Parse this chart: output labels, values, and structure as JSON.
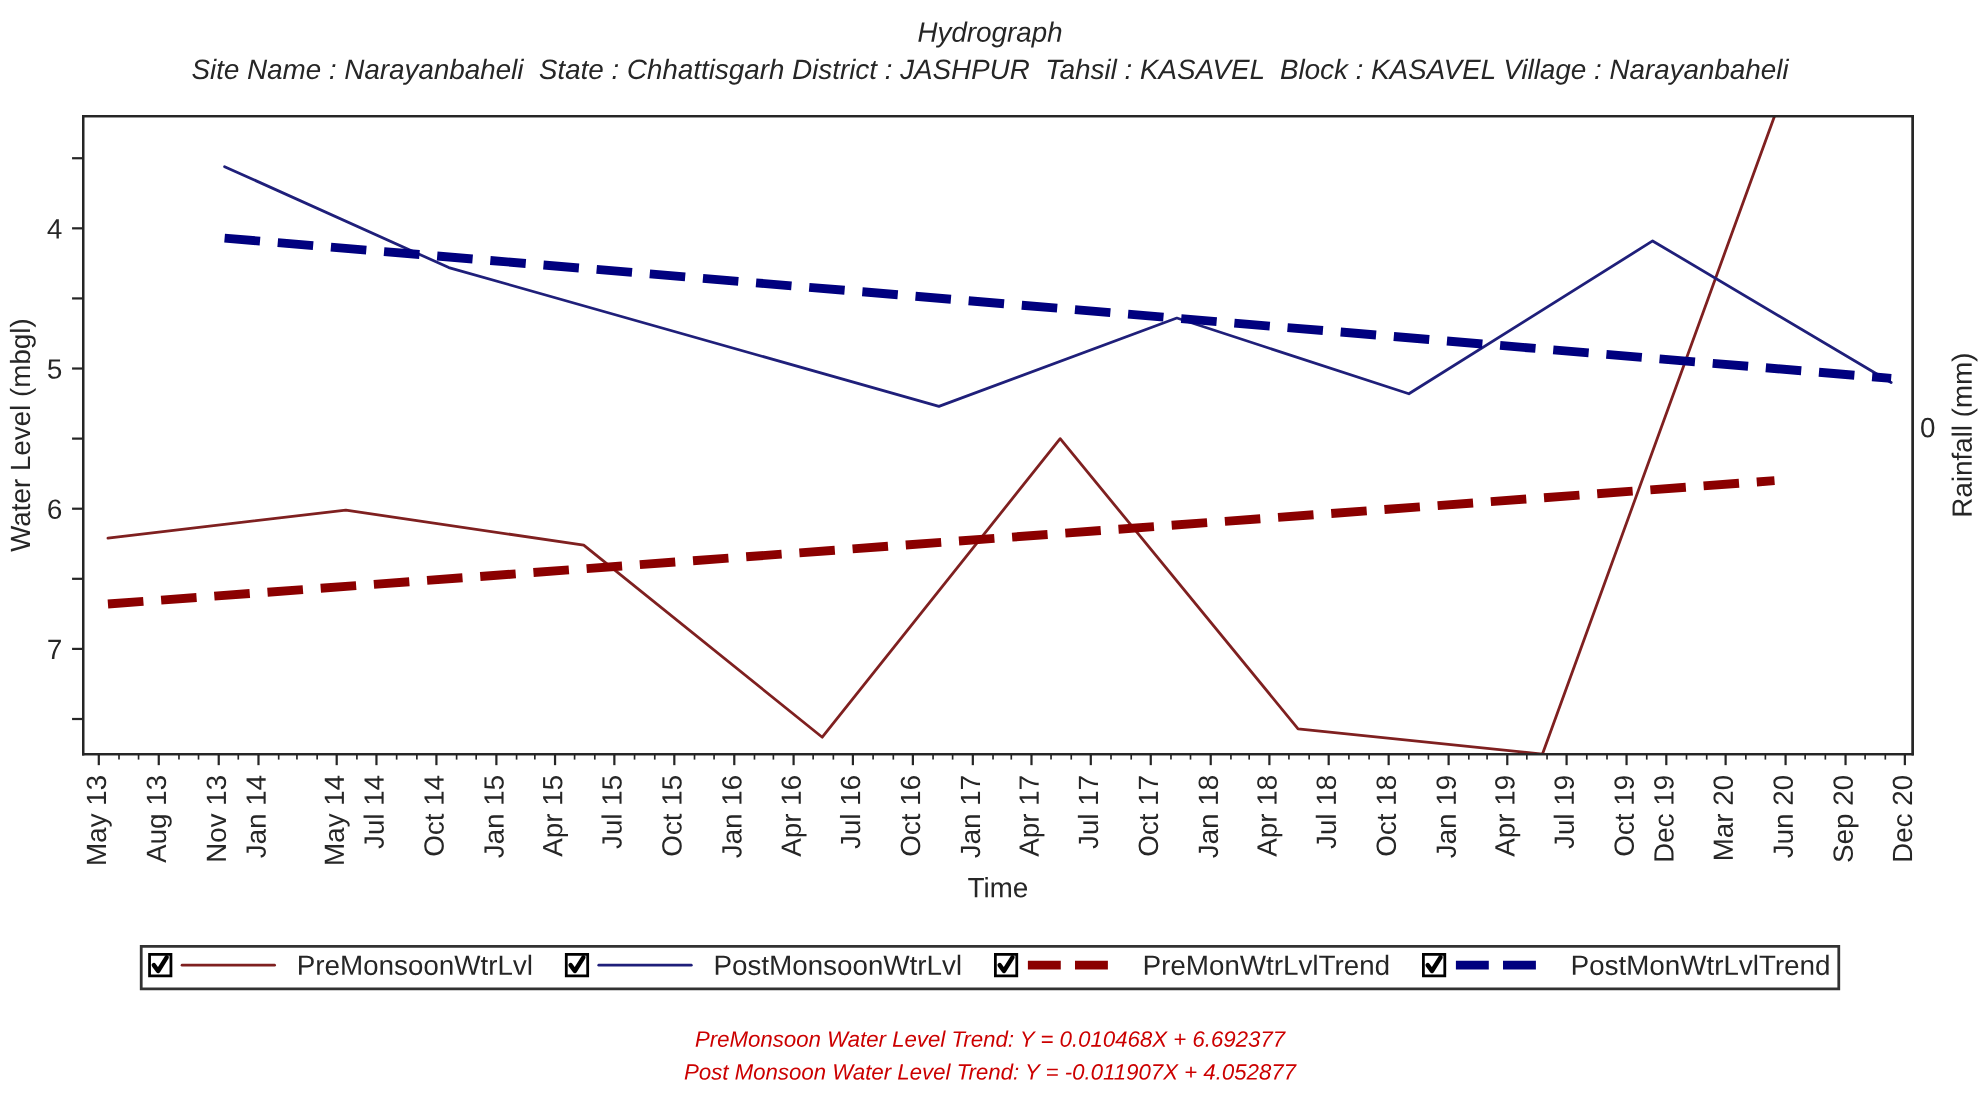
{
  "chart_data": {
    "type": "line",
    "title": "Hydrograph",
    "subtitle": "Site Name : Narayanbaheli  State : Chhattisgarh District : JASHPUR  Tahsil : KASAVEL  Block : KASAVEL Village : Narayanbaheli",
    "xlabel": "Time",
    "ylabel": "Water Level (mbgl)",
    "y2label": "Rainfall (mm)",
    "series": [
      {
        "name": "PreMonsoonWtrLvl",
        "color": "#7f2020",
        "line_style": "solid",
        "x": [
          "2013-05-15",
          "2014-05-15",
          "2015-05-15",
          "2016-05-15",
          "2017-05-15",
          "2018-05-15",
          "2019-05-25",
          "2020-05-15"
        ],
        "values": [
          6.21,
          6.01,
          6.26,
          7.63,
          5.5,
          7.57,
          7.75,
          3.2
        ]
      },
      {
        "name": "PostMonsoonWtrLvl",
        "color": "#1f1f7a",
        "line_style": "solid",
        "x": [
          "2013-11-10",
          "2014-10-20",
          "2016-11-10",
          "2017-11-10",
          "2018-11-01",
          "2019-11-10",
          "2020-11-10"
        ],
        "values": [
          3.56,
          4.28,
          5.27,
          4.64,
          5.18,
          4.09,
          5.1
        ]
      },
      {
        "name": "PreMonWtrLvlTrend",
        "color": "#8b0000",
        "line_style": "dashed",
        "x": [
          "2013-05-15",
          "2020-05-15"
        ],
        "values": [
          6.68,
          5.8
        ]
      },
      {
        "name": "PostMonWtrLvlTrend",
        "color": "#00007f",
        "line_style": "dashed",
        "x": [
          "2013-11-10",
          "2020-11-10"
        ],
        "values": [
          4.07,
          5.07
        ]
      }
    ],
    "xlim": [
      "2013-04-07",
      "2020-12-13"
    ],
    "xticks": [
      {
        "value": "2013-05-01",
        "label": "May 13"
      },
      {
        "value": "2013-08-01",
        "label": "Aug 13"
      },
      {
        "value": "2013-11-01",
        "label": "Nov 13"
      },
      {
        "value": "2014-01-01",
        "label": "Jan 14"
      },
      {
        "value": "2014-05-01",
        "label": "May 14"
      },
      {
        "value": "2014-07-01",
        "label": "Jul 14"
      },
      {
        "value": "2014-10-01",
        "label": "Oct 14"
      },
      {
        "value": "2015-01-01",
        "label": "Jan 15"
      },
      {
        "value": "2015-04-01",
        "label": "Apr 15"
      },
      {
        "value": "2015-07-01",
        "label": "Jul 15"
      },
      {
        "value": "2015-10-01",
        "label": "Oct 15"
      },
      {
        "value": "2016-01-01",
        "label": "Jan 16"
      },
      {
        "value": "2016-04-01",
        "label": "Apr 16"
      },
      {
        "value": "2016-07-01",
        "label": "Jul 16"
      },
      {
        "value": "2016-10-01",
        "label": "Oct 16"
      },
      {
        "value": "2017-01-01",
        "label": "Jan 17"
      },
      {
        "value": "2017-04-01",
        "label": "Apr 17"
      },
      {
        "value": "2017-07-01",
        "label": "Jul 17"
      },
      {
        "value": "2017-10-01",
        "label": "Oct 17"
      },
      {
        "value": "2018-01-01",
        "label": "Jan 18"
      },
      {
        "value": "2018-04-01",
        "label": "Apr 18"
      },
      {
        "value": "2018-07-01",
        "label": "Jul 18"
      },
      {
        "value": "2018-10-01",
        "label": "Oct 18"
      },
      {
        "value": "2019-01-01",
        "label": "Jan 19"
      },
      {
        "value": "2019-04-01",
        "label": "Apr 19"
      },
      {
        "value": "2019-07-01",
        "label": "Jul 19"
      },
      {
        "value": "2019-10-01",
        "label": "Oct 19"
      },
      {
        "value": "2019-12-01",
        "label": "Dec 19"
      },
      {
        "value": "2020-03-01",
        "label": "Mar 20"
      },
      {
        "value": "2020-06-01",
        "label": "Jun 20"
      },
      {
        "value": "2020-09-01",
        "label": "Sep 20"
      },
      {
        "value": "2020-12-01",
        "label": "Dec 20"
      }
    ],
    "ylim": [
      7.75,
      3.2
    ],
    "yticks": [
      {
        "value": 3.5,
        "label": null
      },
      4,
      {
        "value": 4.5,
        "label": null
      },
      5,
      {
        "value": 5.5,
        "label": null
      },
      6,
      {
        "value": 6.5,
        "label": null
      },
      7,
      {
        "value": 7.5,
        "label": null
      }
    ],
    "grid": false,
    "legend": "bottom",
    "marker": "none",
    "annotations": [
      "0",
      "PreMonsoon Water Level Trend: Y = 0.010468X + 6.692377",
      "Post Monsoon Water Level Trend: Y = -0.011907X + 4.052877"
    ]
  }
}
